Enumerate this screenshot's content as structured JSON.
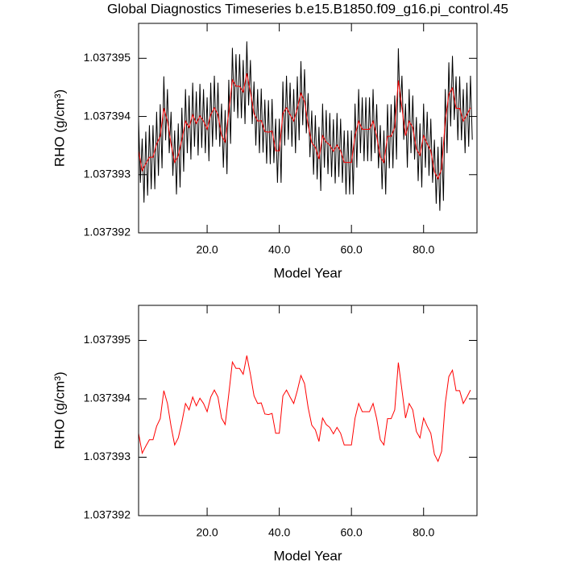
{
  "chart_data": [
    {
      "type": "line",
      "title": "Global Diagnostics Timeseries b.e15.B1850.f09_g16.pi_control.45",
      "xlabel": "Model Year",
      "ylabel": "RHO (g/cm³)",
      "xlim": [
        1,
        94.8
      ],
      "xticks": [
        {
          "value": 20,
          "label": "20.0"
        },
        {
          "value": 40,
          "label": "40.0"
        },
        {
          "value": 60,
          "label": "60.0"
        },
        {
          "value": 80,
          "label": "80.0"
        }
      ],
      "ylim": [
        1.037392,
        1.0373956
      ],
      "yticks": [
        1.037392,
        1.037393,
        1.037394,
        1.037395
      ],
      "series": [
        {
          "color": "#000000",
          "x": [
            1,
            1.5,
            2,
            2.5,
            3,
            3.5,
            4,
            4.5,
            5,
            5.5,
            6,
            6.5,
            7,
            7.5,
            8,
            8.5,
            9,
            9.5,
            10,
            10.5,
            11,
            11.5,
            12,
            12.5,
            13,
            13.5,
            14,
            14.5,
            15,
            15.5,
            16,
            16.5,
            17,
            17.5,
            18,
            18.5,
            19,
            19.5,
            20,
            20.5,
            21,
            21.5,
            22,
            22.5,
            23,
            23.5,
            24,
            24.5,
            25,
            25.5,
            26,
            26.5,
            27,
            27.5,
            28,
            28.5,
            29,
            29.5,
            30,
            30.5,
            31,
            31.5,
            32,
            32.5,
            33,
            33.5,
            34,
            34.5,
            35,
            35.5,
            36,
            36.5,
            37,
            37.5,
            38,
            38.5,
            39,
            39.5,
            40,
            40.5,
            41,
            41.5,
            42,
            42.5,
            43,
            43.5,
            44,
            44.5,
            45,
            45.5,
            46,
            46.5,
            47,
            47.5,
            48,
            48.5,
            49,
            49.5,
            50,
            50.5,
            51,
            51.5,
            52,
            52.5,
            53,
            53.5,
            54,
            54.5,
            55,
            55.5,
            56,
            56.5,
            57,
            57.5,
            58,
            58.5,
            59,
            59.5,
            60,
            60.5,
            61,
            61.5,
            62,
            62.5,
            63,
            63.5,
            64,
            64.5,
            65,
            65.5,
            66,
            66.5,
            67,
            67.5,
            68,
            68.5,
            69,
            69.5,
            70,
            70.5,
            71,
            71.5,
            72,
            72.5,
            73,
            73.5,
            74,
            74.5,
            75,
            75.5,
            76,
            76.5,
            77,
            77.5,
            78,
            78.5,
            79,
            79.5,
            80,
            80.5,
            81,
            81.5,
            82,
            82.5,
            83,
            83.5,
            84,
            84.5,
            85,
            85.5,
            86,
            86.5,
            87,
            87.5,
            88,
            88.5,
            89,
            89.5,
            90,
            90.5,
            91,
            91.5,
            92,
            92.5,
            93,
            93.5
          ],
          "values": [
            1.03739396,
            1.03739286,
            1.03739362,
            1.03739252,
            1.03739374,
            1.03739264,
            1.03739385,
            1.03739275,
            1.03739385,
            1.03739275,
            1.03739408,
            1.03739298,
            1.03739421,
            1.03739311,
            1.03739469,
            1.03739359,
            1.03739447,
            1.03739337,
            1.03739408,
            1.03739298,
            1.03739376,
            1.03739266,
            1.03739388,
            1.03739278,
            1.03739415,
            1.03739305,
            1.03739447,
            1.03739337,
            1.03739436,
            1.03739326,
            1.03739458,
            1.03739348,
            1.03739443,
            1.03739333,
            1.03739456,
            1.03739346,
            1.03739447,
            1.03739337,
            1.03739433,
            1.03739323,
            1.03739458,
            1.03739348,
            1.0373947,
            1.0373936,
            1.03739458,
            1.03739348,
            1.03739422,
            1.03739312,
            1.03739411,
            1.03739301,
            1.03739463,
            1.03739353,
            1.03739518,
            1.03739408,
            1.03739507,
            1.03739397,
            1.03739507,
            1.03739397,
            1.03739497,
            1.03739387,
            1.03739529,
            1.03739419,
            1.03739497,
            1.03739387,
            1.0373946,
            1.0373935,
            1.03739447,
            1.03739337,
            1.03739448,
            1.03739338,
            1.03739429,
            1.03739319,
            1.03739428,
            1.03739318,
            1.0373943,
            1.0373932,
            1.03739396,
            1.03739286,
            1.03739396,
            1.03739286,
            1.0373946,
            1.0373935,
            1.0373947,
            1.0373936,
            1.03739458,
            1.03739348,
            1.03739447,
            1.03739337,
            1.03739469,
            1.03739359,
            1.03739495,
            1.03739385,
            1.03739481,
            1.03739371,
            1.0373944,
            1.0373933,
            1.0373941,
            1.037393,
            1.03739402,
            1.03739292,
            1.03739382,
            1.03739272,
            1.03739422,
            1.03739312,
            1.03739411,
            1.03739301,
            1.03739406,
            1.03739296,
            1.03739395,
            1.03739285,
            1.03739406,
            1.03739296,
            1.03739396,
            1.03739286,
            1.03739376,
            1.03739266,
            1.03739376,
            1.03739266,
            1.03739376,
            1.03739266,
            1.03739422,
            1.03739312,
            1.03739447,
            1.03739337,
            1.03739433,
            1.03739323,
            1.03739433,
            1.03739323,
            1.03739433,
            1.03739323,
            1.03739447,
            1.03739337,
            1.03739421,
            1.03739311,
            1.03739385,
            1.03739275,
            1.03739376,
            1.03739266,
            1.03739421,
            1.03739311,
            1.03739421,
            1.03739311,
            1.03739436,
            1.03739326,
            1.03739517,
            1.03739407,
            1.0373947,
            1.0373936,
            1.03739422,
            1.03739312,
            1.03739447,
            1.03739337,
            1.03739436,
            1.03739326,
            1.03739399,
            1.03739289,
            1.03739388,
            1.03739278,
            1.03739422,
            1.03739312,
            1.03739408,
            1.03739298,
            1.03739396,
            1.03739286,
            1.0373936,
            1.0373925,
            1.03739348,
            1.03739238,
            1.03739365,
            1.03739255,
            1.03739447,
            1.03739337,
            1.03739493,
            1.03739383,
            1.03739504,
            1.03739394,
            1.03739469,
            1.03739359,
            1.03739469,
            1.03739359,
            1.03739447,
            1.03739337,
            1.03739458,
            1.03739348,
            1.0373947,
            1.0373936
          ]
        },
        {
          "color": "#ff0000",
          "x": [
            1,
            2,
            3,
            4,
            5,
            6,
            7,
            8,
            9,
            10,
            11,
            12,
            13,
            14,
            15,
            16,
            17,
            18,
            19,
            20,
            21,
            22,
            23,
            24,
            25,
            26,
            27,
            28,
            29,
            30,
            31,
            32,
            33,
            34,
            35,
            36,
            37,
            38,
            39,
            40,
            41,
            42,
            43,
            44,
            45,
            46,
            47,
            48,
            49,
            50,
            51,
            52,
            53,
            54,
            55,
            56,
            57,
            58,
            59,
            60,
            61,
            62,
            63,
            64,
            65,
            66,
            67,
            68,
            69,
            70,
            71,
            72,
            73,
            74,
            75,
            76,
            77,
            78,
            79,
            80,
            81,
            82,
            83,
            84,
            85,
            86,
            87,
            88,
            89,
            90,
            91,
            92,
            93
          ],
          "values": [
            1.03739341,
            1.03739307,
            1.03739319,
            1.0373933,
            1.0373933,
            1.03739353,
            1.03739366,
            1.03739414,
            1.03739392,
            1.03739353,
            1.03739321,
            1.03739333,
            1.0373936,
            1.03739392,
            1.03739381,
            1.03739403,
            1.03739388,
            1.03739401,
            1.03739392,
            1.03739378,
            1.03739403,
            1.03739415,
            1.03739403,
            1.03739367,
            1.03739356,
            1.03739408,
            1.03739463,
            1.03739452,
            1.03739452,
            1.03739442,
            1.03739474,
            1.03739442,
            1.03739405,
            1.03739392,
            1.03739393,
            1.03739374,
            1.03739373,
            1.03739375,
            1.03739341,
            1.03739341,
            1.03739405,
            1.03739415,
            1.03739403,
            1.03739392,
            1.03739414,
            1.0373944,
            1.03739426,
            1.03739385,
            1.03739355,
            1.03739347,
            1.03739327,
            1.03739367,
            1.03739356,
            1.03739351,
            1.0373934,
            1.03739351,
            1.03739341,
            1.03739321,
            1.03739321,
            1.03739321,
            1.03739367,
            1.03739392,
            1.03739378,
            1.03739378,
            1.03739378,
            1.03739392,
            1.03739366,
            1.0373933,
            1.03739321,
            1.03739366,
            1.03739366,
            1.03739381,
            1.03739462,
            1.03739415,
            1.03739367,
            1.03739392,
            1.03739381,
            1.03739344,
            1.03739333,
            1.03739367,
            1.03739353,
            1.03739341,
            1.03739305,
            1.03739293,
            1.0373931,
            1.03739392,
            1.03739438,
            1.03739449,
            1.03739414,
            1.03739414,
            1.03739392,
            1.03739403,
            1.03739415
          ]
        }
      ]
    },
    {
      "type": "line",
      "xlabel": "Model Year",
      "ylabel": "RHO (g/cm³)",
      "xlim": [
        1,
        94.8
      ],
      "xticks": [
        {
          "value": 20,
          "label": "20.0"
        },
        {
          "value": 40,
          "label": "40.0"
        },
        {
          "value": 60,
          "label": "60.0"
        },
        {
          "value": 80,
          "label": "80.0"
        }
      ],
      "ylim": [
        1.037392,
        1.0373956
      ],
      "yticks": [
        1.037392,
        1.037393,
        1.037394,
        1.037395
      ],
      "series": [
        {
          "color": "#ff0000",
          "x": [
            1,
            2,
            3,
            4,
            5,
            6,
            7,
            8,
            9,
            10,
            11,
            12,
            13,
            14,
            15,
            16,
            17,
            18,
            19,
            20,
            21,
            22,
            23,
            24,
            25,
            26,
            27,
            28,
            29,
            30,
            31,
            32,
            33,
            34,
            35,
            36,
            37,
            38,
            39,
            40,
            41,
            42,
            43,
            44,
            45,
            46,
            47,
            48,
            49,
            50,
            51,
            52,
            53,
            54,
            55,
            56,
            57,
            58,
            59,
            60,
            61,
            62,
            63,
            64,
            65,
            66,
            67,
            68,
            69,
            70,
            71,
            72,
            73,
            74,
            75,
            76,
            77,
            78,
            79,
            80,
            81,
            82,
            83,
            84,
            85,
            86,
            87,
            88,
            89,
            90,
            91,
            92,
            93
          ],
          "values": [
            1.03739341,
            1.03739307,
            1.03739319,
            1.0373933,
            1.0373933,
            1.03739353,
            1.03739366,
            1.03739414,
            1.03739392,
            1.03739353,
            1.03739321,
            1.03739333,
            1.0373936,
            1.03739392,
            1.03739381,
            1.03739403,
            1.03739388,
            1.03739401,
            1.03739392,
            1.03739378,
            1.03739403,
            1.03739415,
            1.03739403,
            1.03739367,
            1.03739356,
            1.03739408,
            1.03739463,
            1.03739452,
            1.03739452,
            1.03739442,
            1.03739474,
            1.03739442,
            1.03739405,
            1.03739392,
            1.03739393,
            1.03739374,
            1.03739373,
            1.03739375,
            1.03739341,
            1.03739341,
            1.03739405,
            1.03739415,
            1.03739403,
            1.03739392,
            1.03739414,
            1.0373944,
            1.03739426,
            1.03739385,
            1.03739355,
            1.03739347,
            1.03739327,
            1.03739367,
            1.03739356,
            1.03739351,
            1.0373934,
            1.03739351,
            1.03739341,
            1.03739321,
            1.03739321,
            1.03739321,
            1.03739367,
            1.03739392,
            1.03739378,
            1.03739378,
            1.03739378,
            1.03739392,
            1.03739366,
            1.0373933,
            1.03739321,
            1.03739366,
            1.03739366,
            1.03739381,
            1.03739462,
            1.03739415,
            1.03739367,
            1.03739392,
            1.03739381,
            1.03739344,
            1.03739333,
            1.03739367,
            1.03739353,
            1.03739341,
            1.03739305,
            1.03739293,
            1.0373931,
            1.03739392,
            1.03739438,
            1.03739449,
            1.03739414,
            1.03739414,
            1.03739392,
            1.03739403,
            1.03739415
          ]
        }
      ]
    }
  ]
}
